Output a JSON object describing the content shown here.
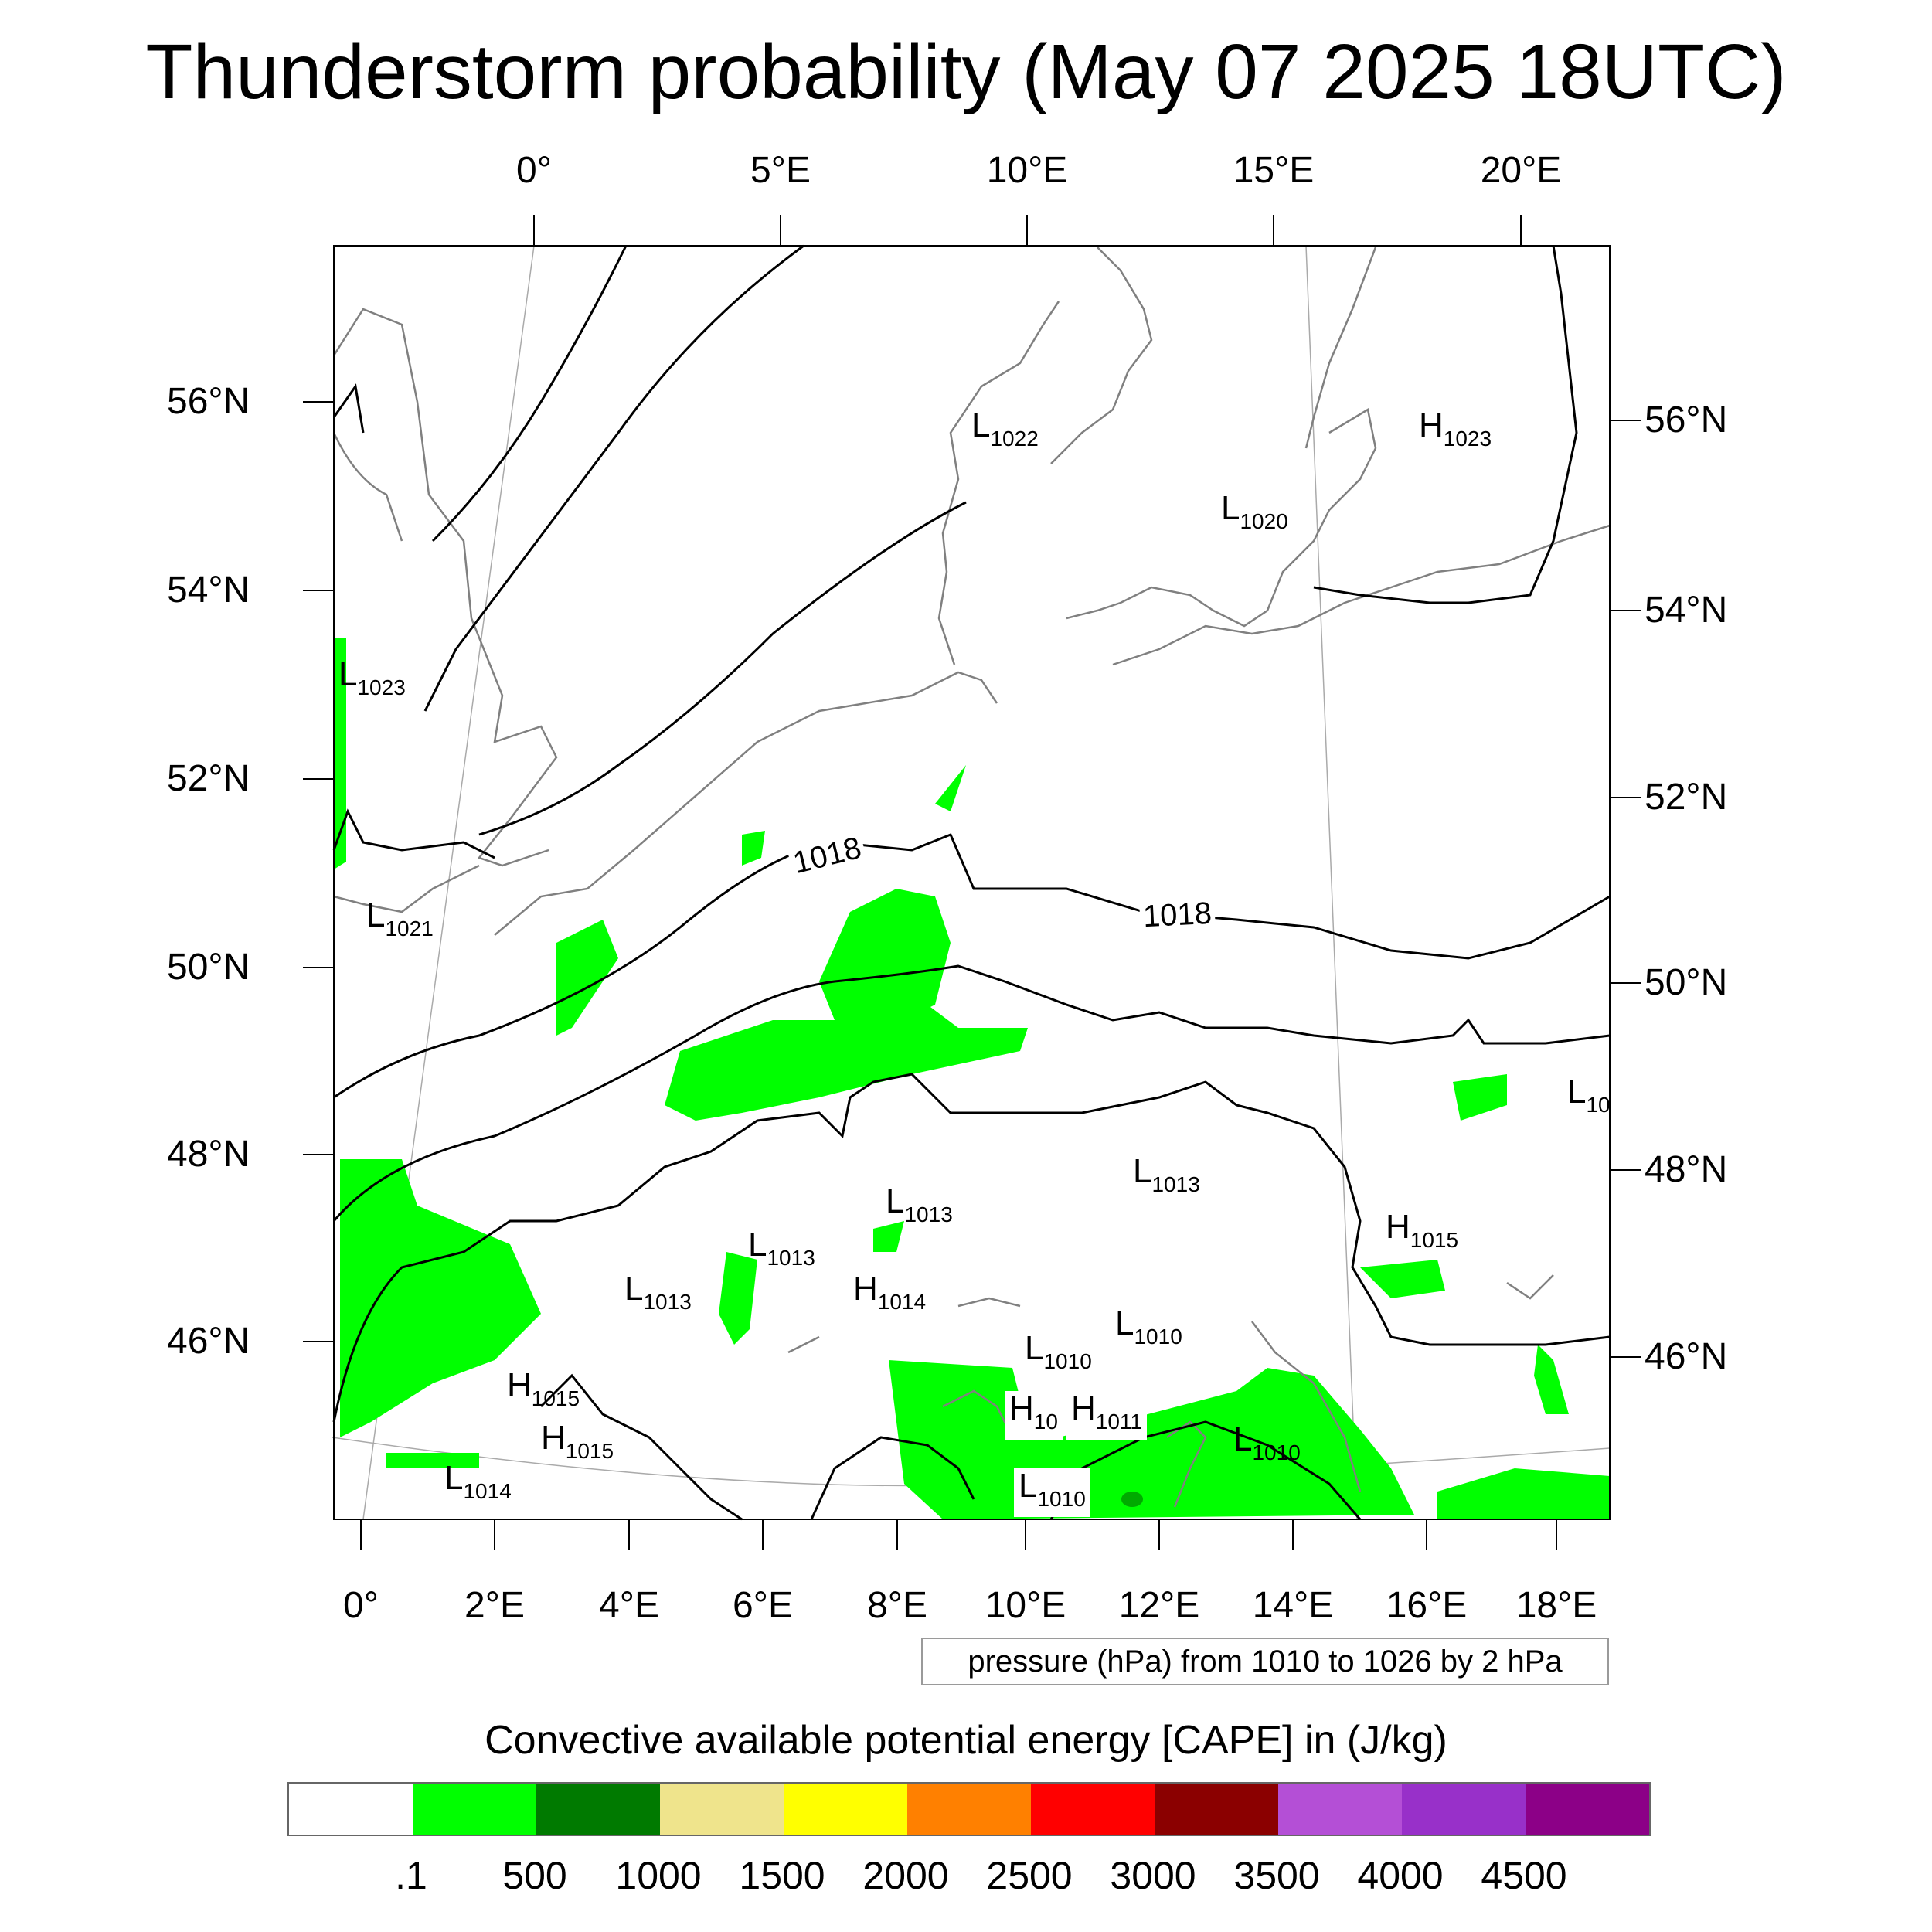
{
  "title": "Thunderstorm probability (May 07 2025 18UTC)",
  "axes": {
    "top_lon_labels": [
      "0°",
      "5°E",
      "10°E",
      "15°E",
      "20°E"
    ],
    "bottom_lon_labels": [
      "0°",
      "2°E",
      "4°E",
      "6°E",
      "8°E",
      "10°E",
      "12°E",
      "14°E",
      "16°E",
      "18°E"
    ],
    "left_lat_labels": [
      "56°N",
      "54°N",
      "52°N",
      "50°N",
      "48°N",
      "46°N"
    ],
    "right_lat_labels": [
      "56°N",
      "54°N",
      "52°N",
      "50°N",
      "48°N",
      "46°N"
    ]
  },
  "pressure_systems": [
    {
      "type": "L",
      "value": "1022"
    },
    {
      "type": "H",
      "value": "1023"
    },
    {
      "type": "L",
      "value": "1020"
    },
    {
      "type": "L",
      "value": "1023"
    },
    {
      "type": "L",
      "value": "1021"
    },
    {
      "type": "L",
      "value": "10"
    },
    {
      "type": "L",
      "value": "1013"
    },
    {
      "type": "L",
      "value": "1013"
    },
    {
      "type": "L",
      "value": "1013"
    },
    {
      "type": "L",
      "value": "1013"
    },
    {
      "type": "H",
      "value": "1015"
    },
    {
      "type": "H",
      "value": "1014"
    },
    {
      "type": "L",
      "value": "1010"
    },
    {
      "type": "L",
      "value": "1010"
    },
    {
      "type": "H",
      "value": "1015"
    },
    {
      "type": "H",
      "value": "1015"
    },
    {
      "type": "H",
      "value": "10"
    },
    {
      "type": "H",
      "value": "1011"
    },
    {
      "type": "L",
      "value": "1010"
    },
    {
      "type": "L",
      "value": "1014"
    },
    {
      "type": "L",
      "value": "1010"
    }
  ],
  "contour_labels": [
    "1018",
    "1018"
  ],
  "contour_note": "pressure (hPa) from 1010 to 1026 by 2 hPa",
  "colorbar": {
    "title": "Convective available potential energy [CAPE] in (J/kg)",
    "colors": [
      "#ffffff",
      "#00ff00",
      "#007a00",
      "#efe48c",
      "#ffff00",
      "#ff8000",
      "#ff0000",
      "#8b0000",
      "#b44fd6",
      "#9830c9",
      "#8c0087"
    ],
    "tick_labels": [
      ".1",
      "500",
      "1000",
      "1500",
      "2000",
      "2500",
      "3000",
      "3500",
      "4000",
      "4500"
    ]
  }
}
